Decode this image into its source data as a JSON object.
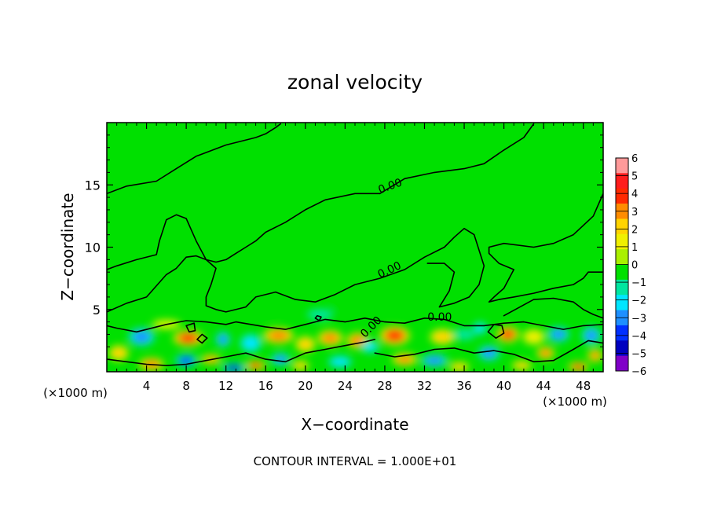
{
  "chart_data": {
    "type": "heatmap",
    "title": "zonal velocity",
    "xlabel": "X−coordinate",
    "ylabel": "Z−coordinate",
    "x_unit_left": "(×1000 m)",
    "x_unit_right": "(×1000 m)",
    "xlim": [
      0,
      50
    ],
    "ylim": [
      0,
      20
    ],
    "x_ticks": [
      4,
      8,
      12,
      16,
      20,
      24,
      28,
      32,
      36,
      40,
      44,
      48
    ],
    "y_ticks": [
      5,
      10,
      15
    ],
    "colorbar": {
      "range": [
        -6,
        6
      ],
      "labels": [
        "6",
        "5",
        "4",
        "3",
        "2",
        "1",
        "0",
        "−1",
        "−2",
        "−3",
        "−4",
        "−5",
        "−6"
      ],
      "colors": [
        "#ff9a9a",
        "#ff1d1d",
        "#ff2a00",
        "#ff8c00",
        "#ffd400",
        "#f0f000",
        "#aaf000",
        "#00e000",
        "#00e6a0",
        "#00e6ff",
        "#1e90ff",
        "#0030ff",
        "#0000c0",
        "#8000c8"
      ]
    },
    "background_color": "#00e000",
    "contour_labels": [
      {
        "text": "0.00",
        "x": 27.5,
        "y": 14.3
      },
      {
        "text": "0.00",
        "x": 27.5,
        "y": 7.5
      },
      {
        "text": "0.00",
        "x": 32.3,
        "y": 4.1
      },
      {
        "text": "0.00",
        "x": 26.0,
        "y": 2.7
      }
    ],
    "contour_interval_text": "CONTOUR INTERVAL = 1.000E+01",
    "zero_contours": [
      [
        [
          0,
          14.3
        ],
        [
          2,
          14.9
        ],
        [
          5,
          15.3
        ],
        [
          7,
          16.3
        ],
        [
          9,
          17.3
        ],
        [
          12,
          18.2
        ],
        [
          15,
          18.8
        ],
        [
          16,
          19.1
        ],
        [
          17,
          19.6
        ],
        [
          17.5,
          19.9
        ]
      ],
      [
        [
          27.5,
          14.3
        ],
        [
          30,
          15.5
        ],
        [
          33,
          16.0
        ],
        [
          36,
          16.3
        ],
        [
          38,
          16.7
        ],
        [
          40,
          17.8
        ],
        [
          42,
          18.8
        ],
        [
          43,
          19.9
        ]
      ],
      [
        [
          27.5,
          14.3
        ],
        [
          25,
          14.3
        ],
        [
          22,
          13.8
        ],
        [
          20,
          13.0
        ],
        [
          18,
          12.0
        ],
        [
          16,
          11.2
        ],
        [
          15,
          10.5
        ],
        [
          14,
          10.0
        ],
        [
          13,
          9.5
        ],
        [
          12,
          9.0
        ],
        [
          11,
          8.8
        ],
        [
          10,
          9.0
        ],
        [
          9,
          10.5
        ],
        [
          8,
          12.3
        ],
        [
          7,
          12.6
        ],
        [
          6,
          12.2
        ],
        [
          5.3,
          10.5
        ],
        [
          5,
          9.4
        ],
        [
          3,
          9.0
        ],
        [
          1,
          8.5
        ],
        [
          0,
          8.2
        ]
      ],
      [
        [
          0,
          4.8
        ],
        [
          2,
          5.5
        ],
        [
          4,
          6.0
        ],
        [
          6,
          7.8
        ],
        [
          7,
          8.3
        ],
        [
          8,
          9.2
        ],
        [
          9,
          9.3
        ],
        [
          10,
          9.0
        ],
        [
          11,
          8.3
        ],
        [
          10.5,
          7.0
        ],
        [
          10,
          6.0
        ],
        [
          10,
          5.3
        ],
        [
          11,
          5.0
        ],
        [
          12,
          4.8
        ],
        [
          14,
          5.2
        ],
        [
          15,
          6.0
        ],
        [
          17,
          6.4
        ],
        [
          19,
          5.8
        ],
        [
          21,
          5.6
        ],
        [
          23,
          6.2
        ],
        [
          25,
          7.0
        ],
        [
          27.5,
          7.5
        ],
        [
          30,
          8.2
        ],
        [
          32,
          9.2
        ],
        [
          34,
          10.0
        ],
        [
          35,
          10.8
        ],
        [
          36,
          11.5
        ],
        [
          37,
          11.0
        ],
        [
          38,
          8.5
        ],
        [
          37.5,
          7.0
        ],
        [
          36.5,
          6.0
        ],
        [
          35,
          5.5
        ],
        [
          33.5,
          5.2
        ],
        [
          34.5,
          6.5
        ],
        [
          35,
          8.0
        ],
        [
          34,
          8.7
        ],
        [
          32.3,
          8.7
        ]
      ],
      [
        [
          50,
          14.3
        ],
        [
          49,
          12.5
        ],
        [
          47,
          11.0
        ],
        [
          45,
          10.3
        ],
        [
          43,
          10.0
        ],
        [
          40,
          10.3
        ],
        [
          38.5,
          10.0
        ],
        [
          38.5,
          9.5
        ],
        [
          39.5,
          8.7
        ],
        [
          41,
          8.2
        ],
        [
          40,
          6.7
        ],
        [
          39,
          6.0
        ],
        [
          38.5,
          5.6
        ],
        [
          39.5,
          5.8
        ],
        [
          41,
          6.0
        ],
        [
          43,
          6.3
        ],
        [
          45,
          6.7
        ],
        [
          47,
          7.0
        ],
        [
          48,
          7.5
        ],
        [
          48.5,
          8.0
        ],
        [
          50,
          8.0
        ]
      ],
      [
        [
          40,
          4.5
        ],
        [
          43,
          5.8
        ],
        [
          45,
          5.9
        ],
        [
          47,
          5.6
        ],
        [
          48,
          5.0
        ],
        [
          49,
          4.6
        ],
        [
          50,
          4.3
        ]
      ],
      [
        [
          0,
          3.7
        ],
        [
          1,
          3.5
        ],
        [
          3,
          3.2
        ],
        [
          6,
          3.8
        ],
        [
          8,
          4.1
        ],
        [
          10,
          4.0
        ],
        [
          12,
          3.8
        ],
        [
          13,
          4.0
        ],
        [
          16,
          3.6
        ],
        [
          18,
          3.4
        ],
        [
          20,
          3.8
        ],
        [
          22,
          4.2
        ],
        [
          24,
          4.0
        ],
        [
          26,
          4.3
        ],
        [
          28,
          4.0
        ],
        [
          30,
          3.9
        ],
        [
          32,
          4.3
        ],
        [
          34,
          4.2
        ],
        [
          36,
          3.7
        ],
        [
          38,
          3.7
        ],
        [
          40,
          3.9
        ],
        [
          42,
          4.0
        ],
        [
          44,
          3.7
        ],
        [
          46,
          3.4
        ],
        [
          48,
          3.7
        ],
        [
          50,
          3.8
        ]
      ],
      [
        [
          0,
          1.0
        ],
        [
          2,
          0.8
        ],
        [
          4,
          0.6
        ],
        [
          6,
          0.5
        ],
        [
          8,
          0.6
        ],
        [
          10,
          0.9
        ],
        [
          12,
          1.2
        ],
        [
          14,
          1.5
        ],
        [
          16,
          1.0
        ],
        [
          18,
          0.8
        ],
        [
          20,
          1.5
        ],
        [
          22,
          1.8
        ],
        [
          24,
          2.1
        ],
        [
          26,
          2.4
        ],
        [
          27,
          2.6
        ]
      ],
      [
        [
          27,
          1.5
        ],
        [
          29,
          1.2
        ],
        [
          31,
          1.4
        ],
        [
          33,
          1.8
        ],
        [
          35,
          1.9
        ],
        [
          37,
          1.5
        ],
        [
          39,
          1.7
        ],
        [
          41,
          1.4
        ],
        [
          43,
          0.8
        ],
        [
          45,
          0.9
        ],
        [
          47,
          1.8
        ],
        [
          48.5,
          2.5
        ],
        [
          50,
          2.3
        ]
      ],
      [
        [
          8,
          3.7
        ],
        [
          8.3,
          3.2
        ],
        [
          8.9,
          3.3
        ],
        [
          8.8,
          3.9
        ],
        [
          8,
          3.7
        ]
      ],
      [
        [
          9.1,
          2.6
        ],
        [
          9.6,
          2.3
        ],
        [
          10.1,
          2.7
        ],
        [
          9.6,
          3.0
        ],
        [
          9.1,
          2.6
        ]
      ],
      [
        [
          21,
          4.3
        ],
        [
          21.4,
          4.1
        ],
        [
          21.6,
          4.4
        ],
        [
          21.2,
          4.5
        ],
        [
          21,
          4.3
        ]
      ],
      [
        [
          38.4,
          3.2
        ],
        [
          39,
          3.8
        ],
        [
          39.8,
          3.7
        ],
        [
          40,
          3.1
        ],
        [
          39.2,
          2.7
        ],
        [
          38.4,
          3.2
        ]
      ]
    ],
    "blobs": [
      {
        "x": 8.2,
        "y": 2.7,
        "v": 4.2,
        "rx": 1.2,
        "ry": 0.5
      },
      {
        "x": 3.5,
        "y": 2.8,
        "v": -3.2,
        "rx": 1.1,
        "ry": 0.6
      },
      {
        "x": 4.5,
        "y": 0.6,
        "v": 3.8,
        "rx": 1.0,
        "ry": 0.4
      },
      {
        "x": 8.0,
        "y": 0.9,
        "v": -4.2,
        "rx": 0.9,
        "ry": 0.4
      },
      {
        "x": 10.5,
        "y": 1.0,
        "v": 3.0,
        "rx": 0.8,
        "ry": 0.3
      },
      {
        "x": 11.7,
        "y": 2.6,
        "v": -3.0,
        "rx": 0.6,
        "ry": 0.5
      },
      {
        "x": 12.8,
        "y": 0.3,
        "v": -5.0,
        "rx": 1.0,
        "ry": 0.3
      },
      {
        "x": 15.0,
        "y": 0.5,
        "v": 4.0,
        "rx": 0.8,
        "ry": 0.3
      },
      {
        "x": 14.5,
        "y": 2.3,
        "v": -2.8,
        "rx": 0.9,
        "ry": 0.6
      },
      {
        "x": 17.3,
        "y": 2.9,
        "v": 3.6,
        "rx": 1.2,
        "ry": 0.5
      },
      {
        "x": 17.5,
        "y": 1.0,
        "v": -3.2,
        "rx": 0.8,
        "ry": 0.4
      },
      {
        "x": 20.0,
        "y": 2.2,
        "v": 2.8,
        "rx": 0.8,
        "ry": 0.5
      },
      {
        "x": 22.5,
        "y": 2.7,
        "v": 3.4,
        "rx": 1.0,
        "ry": 0.5
      },
      {
        "x": 19.5,
        "y": 0.5,
        "v": 2.5,
        "rx": 0.7,
        "ry": 0.3
      },
      {
        "x": 23.5,
        "y": 0.8,
        "v": -2.6,
        "rx": 1.0,
        "ry": 0.4
      },
      {
        "x": 25.3,
        "y": 2.5,
        "v": 3.8,
        "rx": 0.9,
        "ry": 0.5
      },
      {
        "x": 29.0,
        "y": 2.9,
        "v": 4.2,
        "rx": 1.2,
        "ry": 0.6
      },
      {
        "x": 26.5,
        "y": 2.0,
        "v": -2.0,
        "rx": 0.8,
        "ry": 0.4
      },
      {
        "x": 30.0,
        "y": 1.0,
        "v": 3.0,
        "rx": 1.0,
        "ry": 0.4
      },
      {
        "x": 33.0,
        "y": 0.9,
        "v": -3.6,
        "rx": 1.1,
        "ry": 0.4
      },
      {
        "x": 33.8,
        "y": 2.8,
        "v": 2.6,
        "rx": 1.0,
        "ry": 0.5
      },
      {
        "x": 35.5,
        "y": 0.4,
        "v": 2.4,
        "rx": 0.8,
        "ry": 0.3
      },
      {
        "x": 38.5,
        "y": 1.5,
        "v": -3.2,
        "rx": 0.9,
        "ry": 0.5
      },
      {
        "x": 40.4,
        "y": 3.0,
        "v": 4.0,
        "rx": 0.9,
        "ry": 0.5
      },
      {
        "x": 37.6,
        "y": 3.5,
        "v": -2.2,
        "rx": 0.6,
        "ry": 0.4
      },
      {
        "x": 41.8,
        "y": 0.5,
        "v": 2.6,
        "rx": 0.8,
        "ry": 0.3
      },
      {
        "x": 44.2,
        "y": 1.5,
        "v": 3.4,
        "rx": 0.7,
        "ry": 0.4
      },
      {
        "x": 45.5,
        "y": 3.0,
        "v": -3.2,
        "rx": 0.9,
        "ry": 0.5
      },
      {
        "x": 47.5,
        "y": 0.4,
        "v": 4.0,
        "rx": 0.8,
        "ry": 0.3
      },
      {
        "x": 48.8,
        "y": 2.9,
        "v": -3.0,
        "rx": 0.8,
        "ry": 0.6
      },
      {
        "x": 49.2,
        "y": 1.3,
        "v": 3.2,
        "rx": 0.6,
        "ry": 0.4
      },
      {
        "x": 1.2,
        "y": 1.5,
        "v": 2.2,
        "rx": 0.8,
        "ry": 0.5
      },
      {
        "x": 6.0,
        "y": 3.8,
        "v": 1.5,
        "rx": 1.2,
        "ry": 0.3
      },
      {
        "x": 36.0,
        "y": 3.0,
        "v": -1.5,
        "rx": 1.0,
        "ry": 0.4
      },
      {
        "x": 43.0,
        "y": 2.8,
        "v": 1.8,
        "rx": 0.9,
        "ry": 0.5
      },
      {
        "x": 15.0,
        "y": 5.0,
        "v": -0.8,
        "rx": 2.5,
        "ry": 0.6
      },
      {
        "x": 26.0,
        "y": 5.5,
        "v": -0.7,
        "rx": 3.0,
        "ry": 0.7
      },
      {
        "x": 40.0,
        "y": 7.5,
        "v": -0.6,
        "rx": 2.0,
        "ry": 0.5
      },
      {
        "x": 48.0,
        "y": 7.3,
        "v": -0.6,
        "rx": 1.8,
        "ry": 0.5
      },
      {
        "x": 21.5,
        "y": 4.6,
        "v": -1.2,
        "rx": 1.2,
        "ry": 0.4
      }
    ]
  }
}
